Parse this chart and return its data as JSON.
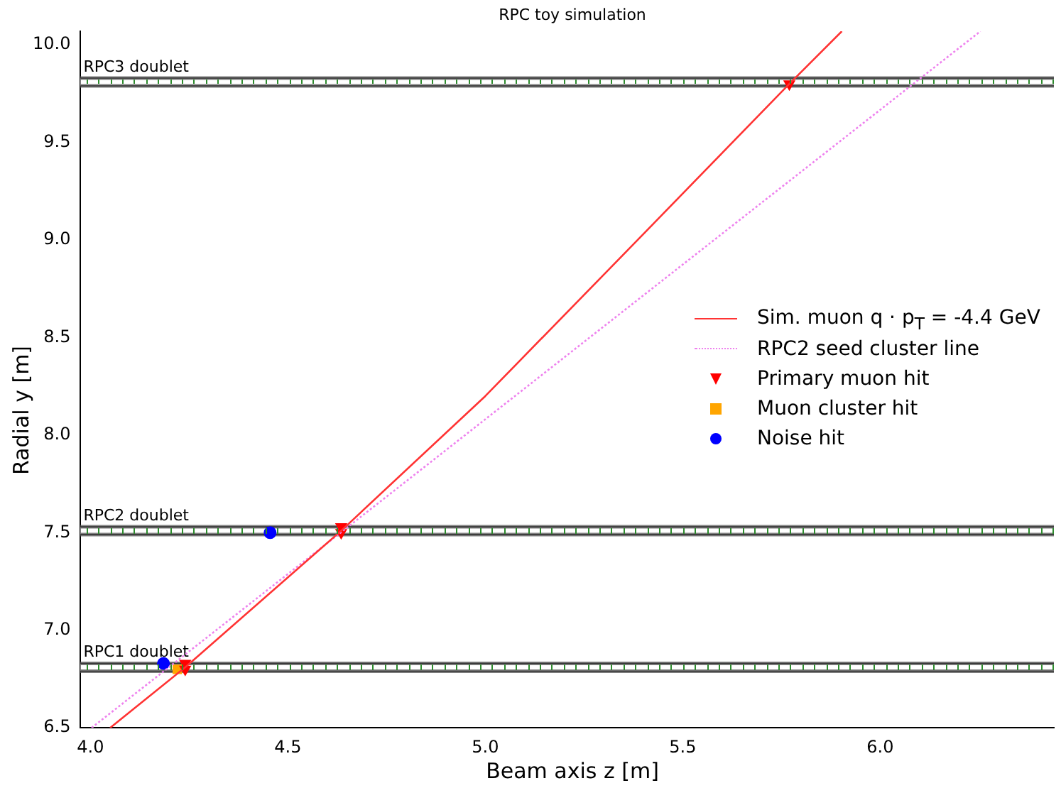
{
  "chart_data": {
    "type": "scatter",
    "title": "RPC toy simulation",
    "xlabel": "Beam axis z [m]",
    "ylabel": "Radial y [m]",
    "xlim": [
      3.975,
      6.44
    ],
    "ylim": [
      6.5,
      10.07
    ],
    "xticks": [
      {
        "value": 4,
        "label": "4.0"
      },
      {
        "value": 4.5,
        "label": "4.5"
      },
      {
        "value": 5,
        "label": "5.0"
      },
      {
        "value": 5.5,
        "label": "5.5"
      },
      {
        "value": 6,
        "label": "6.0"
      }
    ],
    "yticks": [
      {
        "value": 6.5,
        "label": "6.5"
      },
      {
        "value": 7,
        "label": "7.0"
      },
      {
        "value": 7.5,
        "label": "7.5"
      },
      {
        "value": 8,
        "label": "8.0"
      },
      {
        "value": 8.5,
        "label": "8.5"
      },
      {
        "value": 9,
        "label": "9.0"
      },
      {
        "value": 9.5,
        "label": "9.5"
      },
      {
        "value": 10,
        "label": "10.0"
      }
    ],
    "grid": false,
    "legend": "right",
    "bands": [
      {
        "axis": "y",
        "from": 6.79,
        "to": 6.83,
        "label": "RPC1 doublet",
        "color": "#ffffff"
      },
      {
        "axis": "y",
        "from": 7.49,
        "to": 7.53,
        "label": "RPC2 doublet",
        "color": "#ffffff"
      },
      {
        "axis": "y",
        "from": 9.79,
        "to": 9.83,
        "label": "RPC3 doublet",
        "color": "#ffffff"
      }
    ],
    "series": [
      {
        "name": "Sim. muon q · p$_{T}$ = -4.4 GeV",
        "type": "line",
        "color": "#ff3333",
        "line_style": "solid",
        "marker": "none",
        "x": [
          4.05,
          4.24,
          4.635,
          5.0,
          5.4,
          5.77,
          5.903
        ],
        "values": [
          6.5,
          6.81,
          7.51,
          8.2,
          9.03,
          9.8,
          10.07
        ]
      },
      {
        "name": "RPC2 seed cluster line",
        "type": "line",
        "color": "#ee82ee",
        "line_style": "dotted",
        "marker": "none",
        "x": [
          4.003,
          6.254
        ],
        "values": [
          6.5,
          10.07
        ]
      },
      {
        "name": "Primary muon hit",
        "type": "scatter",
        "color": "#ff0000",
        "marker": "triangle",
        "x": [
          4.24,
          4.24,
          4.635,
          4.635,
          5.77
        ],
        "values": [
          6.83,
          6.8,
          7.53,
          7.5,
          9.8
        ]
      },
      {
        "name": "Muon cluster hit",
        "type": "scatter",
        "color": "#ffa500",
        "marker": "square",
        "x": [
          4.22
        ],
        "values": [
          6.8
        ]
      },
      {
        "name": "Noise hit",
        "type": "scatter",
        "color": "#0000ff",
        "marker": "circle",
        "x": [
          4.185,
          4.455
        ],
        "values": [
          6.83,
          7.5
        ]
      }
    ]
  }
}
